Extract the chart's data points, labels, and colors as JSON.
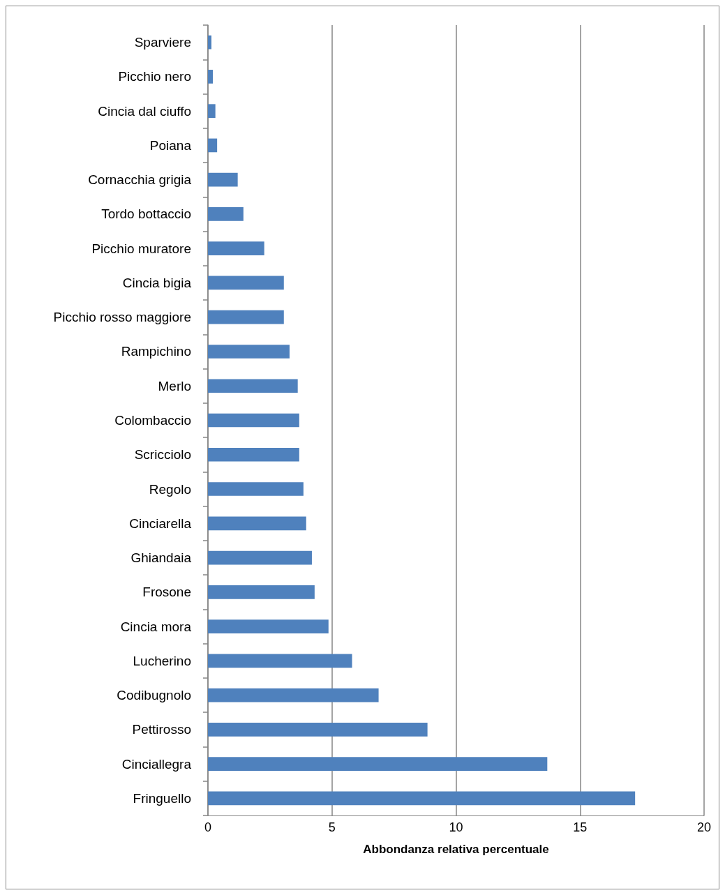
{
  "chart_data": {
    "type": "bar",
    "orientation": "horizontal",
    "xlabel": "Abbondanza relativa percentuale",
    "categories": [
      "Sparviere",
      "Picchio nero",
      "Cincia dal ciuffo",
      "Poiana",
      "Cornacchia grigia",
      "Tordo bottaccio",
      "Picchio muratore",
      "Cincia bigia",
      "Picchio rosso maggiore",
      "Rampichino",
      "Merlo",
      "Colombaccio",
      "Scricciolo",
      "Regolo",
      "Cinciarella",
      "Ghiandaia",
      "Frosone",
      "Cincia mora",
      "Lucherino",
      "Codibugnolo",
      "Pettirosso",
      "Cinciallegra",
      "Fringuello"
    ],
    "values": [
      0.14,
      0.2,
      0.3,
      0.37,
      1.2,
      1.43,
      2.27,
      3.06,
      3.06,
      3.29,
      3.62,
      3.68,
      3.68,
      3.85,
      3.96,
      4.19,
      4.3,
      4.86,
      5.81,
      6.88,
      8.85,
      13.68,
      17.22
    ],
    "color": "#4f81bd",
    "xlim": [
      0,
      20
    ],
    "xticks": [
      0,
      5,
      10,
      15,
      20
    ],
    "grid": "x"
  }
}
